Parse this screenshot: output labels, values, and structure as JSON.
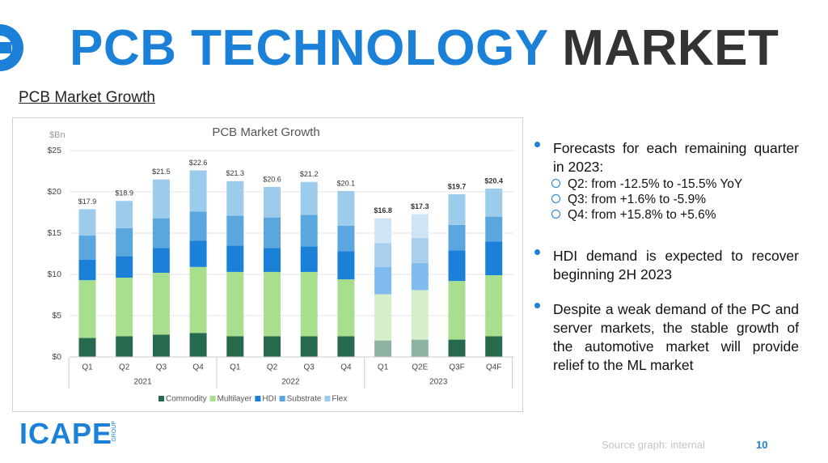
{
  "header": {
    "title_blue": "PCB TECHNOLOGY",
    "title_dark": "MARKET",
    "subtitle": "PCB Market Growth"
  },
  "chart_data": {
    "type": "stacked_bar",
    "title": "PCB Market Growth",
    "y_unit": "$Bn",
    "categories": [
      "Q1",
      "Q2",
      "Q3",
      "Q4",
      "Q1",
      "Q2",
      "Q3",
      "Q4",
      "Q1",
      "Q2E",
      "Q3F",
      "Q4F"
    ],
    "category_groups": [
      "2021",
      "2021",
      "2021",
      "2021",
      "2022",
      "2022",
      "2022",
      "2022",
      "2023",
      "2023",
      "2023",
      "2023"
    ],
    "estimate_bars": [
      false,
      false,
      false,
      false,
      false,
      false,
      false,
      false,
      true,
      true,
      false,
      false
    ],
    "series": [
      {
        "name": "Commodity",
        "color": "#27694c",
        "light_color": "#8fb3a2",
        "values": [
          2.3,
          2.5,
          2.7,
          2.9,
          2.5,
          2.5,
          2.5,
          2.5,
          2.0,
          2.1,
          2.1,
          2.5
        ]
      },
      {
        "name": "Multilayer",
        "color": "#a8df8e",
        "light_color": "#d6efca",
        "values": [
          7.0,
          7.1,
          7.5,
          8.0,
          7.8,
          7.8,
          7.8,
          6.9,
          5.6,
          6.0,
          7.1,
          7.4
        ]
      },
      {
        "name": "HDI",
        "color": "#1a80d8",
        "light_color": "#7fbbee",
        "values": [
          2.5,
          2.6,
          3.0,
          3.2,
          3.2,
          2.9,
          3.1,
          3.4,
          3.3,
          3.3,
          3.7,
          4.1
        ]
      },
      {
        "name": "Substrate",
        "color": "#5aa7e0",
        "light_color": "#aacfee",
        "values": [
          2.9,
          3.4,
          3.6,
          3.5,
          3.6,
          3.7,
          3.8,
          3.1,
          2.9,
          3.0,
          3.1,
          3.0
        ]
      },
      {
        "name": "Flex",
        "color": "#9dcbec",
        "light_color": "#cfe5f5",
        "values": [
          3.2,
          3.3,
          4.7,
          5.0,
          4.2,
          3.7,
          4.0,
          4.2,
          3.0,
          2.9,
          3.7,
          3.4
        ]
      }
    ],
    "totals": [
      17.9,
      18.9,
      21.5,
      22.6,
      21.3,
      20.6,
      21.2,
      20.1,
      16.8,
      17.3,
      19.7,
      20.4
    ],
    "total_labels": [
      "$17.9",
      "$18.9",
      "$21.5",
      "$22.6",
      "$21.3",
      "$20.6",
      "$21.2",
      "$20.1",
      "$16.8",
      "$17.3",
      "$19.7",
      "$20.4"
    ],
    "ylim": [
      0,
      25
    ],
    "yticks": [
      {
        "value": 0,
        "label": "$0"
      },
      {
        "value": 5,
        "label": "$5"
      },
      {
        "value": 10,
        "label": "$10"
      },
      {
        "value": 15,
        "label": "$15"
      },
      {
        "value": 20,
        "label": "$20"
      },
      {
        "value": 25,
        "label": "$25"
      }
    ],
    "grid": true,
    "legend": "bottom"
  },
  "bullets": [
    {
      "text": "Forecasts for each remaining quarter in 2023:",
      "sub": [
        "Q2: from -12.5% to -15.5% YoY",
        "Q3: from +1.6% to -5.9%",
        "Q4: from +15.8% to +5.6%"
      ]
    },
    {
      "text": "HDI demand is expected to recover beginning 2H 2023"
    },
    {
      "text": "Despite a weak demand of the PC and server markets, the stable growth of the automotive market will provide relief to the ML market"
    }
  ],
  "footer": {
    "logo": "ICAPE",
    "logo_group": "GROUP",
    "source": "Source graph: internal",
    "page": "10"
  }
}
